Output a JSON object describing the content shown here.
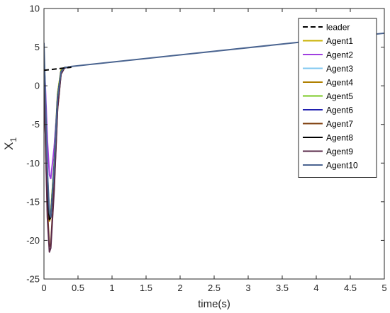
{
  "chart_data": {
    "type": "line",
    "xlabel": "time(s)",
    "ylabel": "X",
    "ylabel_subscript": "1",
    "xlim": [
      0,
      5
    ],
    "ylim": [
      -25,
      10
    ],
    "xticks": [
      0,
      0.5,
      1,
      1.5,
      2,
      2.5,
      3,
      3.5,
      4,
      4.5,
      5
    ],
    "xtick_labels": [
      "0",
      "0.5",
      "1",
      "1.5",
      "2",
      "2.5",
      "3",
      "3.5",
      "4",
      "4.5",
      "5"
    ],
    "yticks": [
      10,
      5,
      0,
      -5,
      -10,
      -15,
      -20,
      -25
    ],
    "ytick_labels": [
      "10",
      "5",
      "0",
      "-5",
      "-10",
      "-15",
      "-20",
      "-25"
    ],
    "grid": false,
    "legend_position": "top-right",
    "series": [
      {
        "name": "leader",
        "color": "#000000",
        "dash": "dashed",
        "x": [
          0,
          0.1,
          0.2,
          0.3,
          0.4
        ],
        "y": [
          2.0,
          2.1,
          2.2,
          2.3,
          2.4
        ]
      },
      {
        "name": "Agent1",
        "color": "#c8b000",
        "dash": "solid",
        "x": [
          0,
          0.02,
          0.05,
          0.08,
          0.1,
          0.15,
          0.2,
          0.25,
          0.3,
          0.35,
          0.4
        ],
        "y": [
          1.5,
          -3,
          -12,
          -17,
          -16.5,
          -10,
          -1,
          2,
          2.35,
          2.4,
          2.45
        ]
      },
      {
        "name": "Agent2",
        "color": "#a040e0",
        "dash": "solid",
        "x": [
          0,
          0.02,
          0.05,
          0.08,
          0.1,
          0.15,
          0.2,
          0.25,
          0.3,
          0.35,
          0.4
        ],
        "y": [
          3,
          0,
          -7,
          -11.5,
          -12,
          -8,
          -2,
          1.5,
          2.3,
          2.4,
          2.45
        ]
      },
      {
        "name": "Agent3",
        "color": "#80c8f0",
        "dash": "solid",
        "x": [
          0,
          0.02,
          0.05,
          0.08,
          0.1,
          0.15,
          0.2,
          0.25,
          0.3,
          0.35,
          0.4
        ],
        "y": [
          4.5,
          -1,
          -11,
          -16.5,
          -16.8,
          -10.5,
          -1.5,
          1.8,
          2.35,
          2.4,
          2.45
        ]
      },
      {
        "name": "Agent4",
        "color": "#b08000",
        "dash": "solid",
        "x": [
          0,
          0.02,
          0.05,
          0.08,
          0.1,
          0.15,
          0.2,
          0.25,
          0.3,
          0.35,
          0.4
        ],
        "y": [
          0.5,
          -4,
          -13,
          -17.5,
          -17,
          -10.5,
          -1.5,
          1.8,
          2.35,
          2.4,
          2.45
        ]
      },
      {
        "name": "Agent5",
        "color": "#78c820",
        "dash": "solid",
        "x": [
          0,
          0.02,
          0.05,
          0.08,
          0.1,
          0.15,
          0.2,
          0.25,
          0.3,
          0.35,
          0.4
        ],
        "y": [
          2,
          -2,
          -11.5,
          -16.8,
          -16.5,
          -10,
          -1.2,
          1.9,
          2.35,
          2.4,
          2.45
        ]
      },
      {
        "name": "Agent6",
        "color": "#2020b0",
        "dash": "solid",
        "x": [
          0,
          0.02,
          0.05,
          0.08,
          0.1,
          0.15,
          0.2,
          0.25,
          0.3,
          0.35,
          0.4
        ],
        "y": [
          4,
          -2,
          -12,
          -17.2,
          -17,
          -10.5,
          -1.5,
          1.8,
          2.35,
          2.4,
          2.45
        ]
      },
      {
        "name": "Agent7",
        "color": "#804010",
        "dash": "solid",
        "x": [
          0,
          0.02,
          0.05,
          0.08,
          0.1,
          0.15,
          0.2,
          0.25,
          0.3,
          0.35,
          0.4
        ],
        "y": [
          -1,
          -6,
          -16,
          -20.8,
          -20.5,
          -13,
          -3,
          1.5,
          2.3,
          2.4,
          2.45
        ]
      },
      {
        "name": "Agent8",
        "color": "#000000",
        "dash": "solid",
        "x": [
          0,
          0.02,
          0.05,
          0.08,
          0.1,
          0.15,
          0.2,
          0.25,
          0.3,
          0.35,
          0.4
        ],
        "y": [
          1,
          -4,
          -14,
          -17.3,
          -17,
          -10.5,
          -1.5,
          1.8,
          2.35,
          2.4,
          2.45
        ]
      },
      {
        "name": "Agent9",
        "color": "#5a2a4a",
        "dash": "solid",
        "x": [
          0,
          0.02,
          0.05,
          0.08,
          0.1,
          0.15,
          0.2,
          0.25,
          0.3,
          0.35,
          0.4
        ],
        "y": [
          0,
          -6,
          -17,
          -21.5,
          -21,
          -13.5,
          -3,
          1.5,
          2.3,
          2.4,
          2.45
        ]
      },
      {
        "name": "Agent10",
        "color": "#4a6490",
        "dash": "solid",
        "x": [
          0,
          0.02,
          0.05,
          0.08,
          0.1,
          0.15,
          0.2,
          0.25,
          0.3,
          0.35,
          0.4,
          5
        ],
        "y": [
          5.5,
          -1,
          -11,
          -16.5,
          -17,
          -10.5,
          -1.5,
          1.8,
          2.35,
          2.4,
          2.5,
          6.8
        ]
      }
    ]
  }
}
